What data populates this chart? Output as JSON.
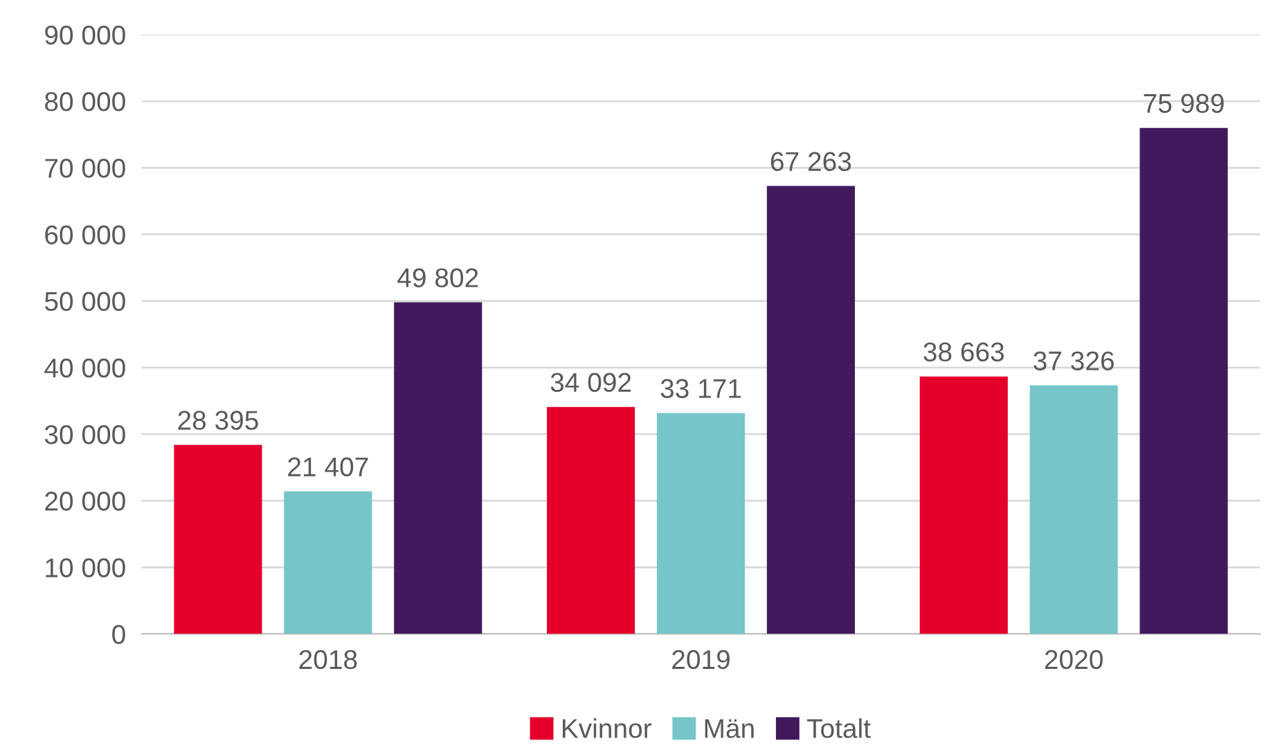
{
  "chart_data": {
    "type": "bar",
    "categories": [
      "2018",
      "2019",
      "2020"
    ],
    "series": [
      {
        "name": "Kvinnor",
        "color": "#e4002b",
        "values": [
          28395,
          34092,
          38663
        ],
        "value_labels": [
          "28 395",
          "34 092",
          "38 663"
        ]
      },
      {
        "name": "Män",
        "color": "#76c5c8",
        "values": [
          21407,
          33171,
          37326
        ],
        "value_labels": [
          "21 407",
          "33 171",
          "37 326"
        ]
      },
      {
        "name": "Totalt",
        "color": "#41195c",
        "values": [
          49802,
          67263,
          75989
        ],
        "value_labels": [
          "49 802",
          "67 263",
          "75 989"
        ]
      }
    ],
    "ylim": [
      0,
      90000
    ],
    "yticks": [
      0,
      {
        "value": 10000,
        "label": "10 000"
      },
      {
        "value": 20000,
        "label": "20 000"
      },
      {
        "value": 30000,
        "label": "30 000"
      },
      {
        "value": 40000,
        "label": "40 000"
      },
      {
        "value": 50000,
        "label": "50 000"
      },
      {
        "value": 60000,
        "label": "60 000"
      },
      {
        "value": 70000,
        "label": "70 000"
      },
      {
        "value": 80000,
        "label": "80 000"
      },
      {
        "value": 90000,
        "label": "90 000"
      }
    ],
    "grid": "y",
    "legend": "bottom"
  }
}
